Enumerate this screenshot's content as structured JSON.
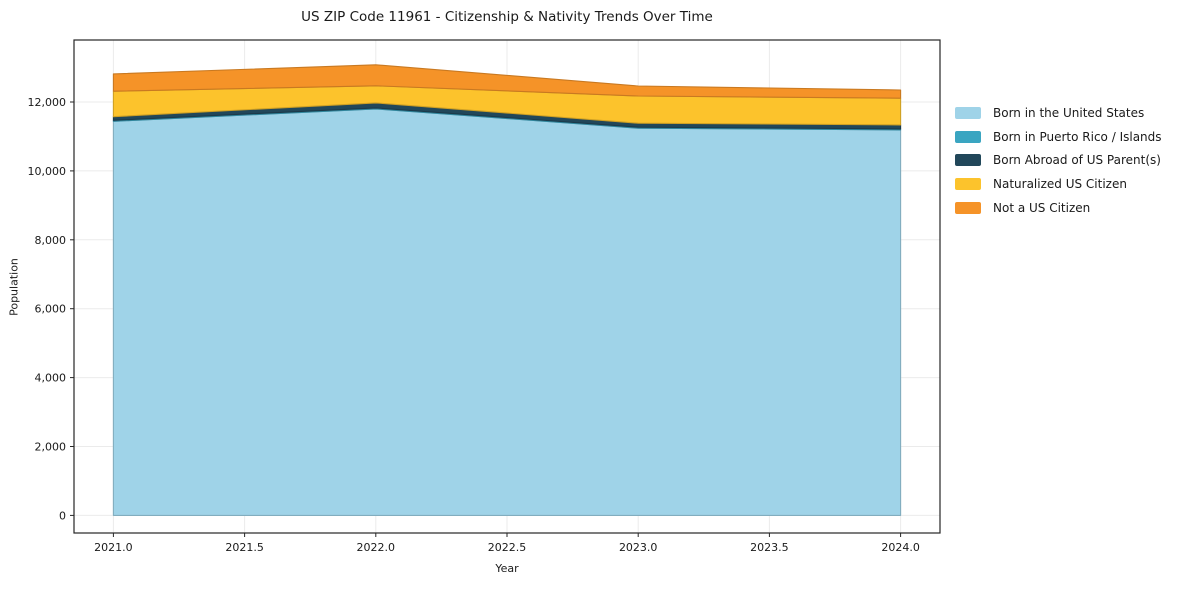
{
  "figure": {
    "background": "#ffffff",
    "text_color": "#1a1a1a",
    "spine_color": "#262626"
  },
  "chart_data": {
    "type": "area",
    "stacked": true,
    "title": "US ZIP Code 11961 - Citizenship & Nativity Trends Over Time",
    "xlabel": "Year",
    "ylabel": "Population",
    "x": [
      2021,
      2022,
      2023,
      2024
    ],
    "series": [
      {
        "name": "Born in the United States",
        "color": "#9fd3e8",
        "values": [
          11440,
          11800,
          11240,
          11190
        ]
      },
      {
        "name": "Born in Puerto Rico / Islands",
        "color": "#3aa5c1",
        "values": [
          30,
          30,
          30,
          30
        ]
      },
      {
        "name": "Born Abroad of US Parent(s)",
        "color": "#21475a",
        "values": [
          105,
          145,
          115,
          115
        ]
      },
      {
        "name": "Naturalized US Citizen",
        "color": "#fcc32c",
        "values": [
          740,
          495,
          790,
          775
        ]
      },
      {
        "name": "Not a US Citizen",
        "color": "#f59328",
        "values": [
          500,
          610,
          290,
          240
        ]
      }
    ],
    "xlim": [
      2020.85,
      2024.15
    ],
    "ylim": [
      -510,
      13800
    ],
    "xticks": {
      "values": [
        2021.0,
        2021.5,
        2022.0,
        2022.5,
        2023.0,
        2023.5,
        2024.0
      ],
      "labels": [
        "2021.0",
        "2021.5",
        "2022.0",
        "2022.5",
        "2023.0",
        "2023.5",
        "2024.0"
      ]
    },
    "yticks": {
      "values": [
        0,
        2000,
        4000,
        6000,
        8000,
        10000,
        12000
      ],
      "labels": [
        "0",
        "2,000",
        "4,000",
        "6,000",
        "8,000",
        "10,000",
        "12,000"
      ]
    },
    "grid": true,
    "grid_color": "#ebebeb",
    "legend_position": "right"
  }
}
